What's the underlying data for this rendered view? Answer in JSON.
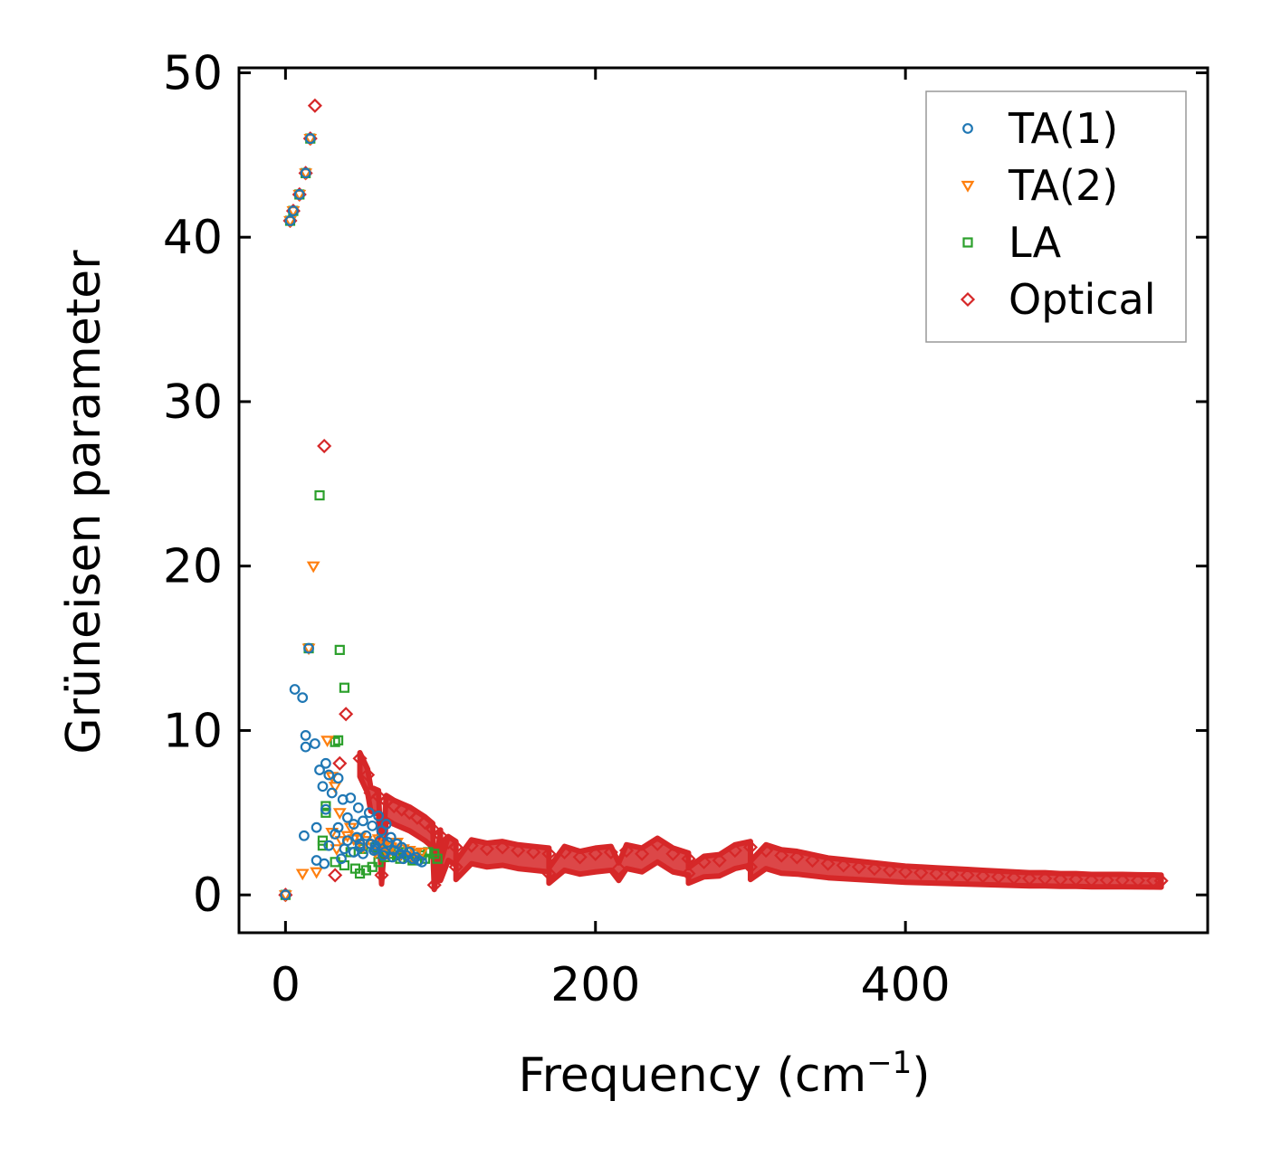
{
  "chart_data": {
    "type": "scatter",
    "title": "",
    "xlabel": "Frequency (cm",
    "xlabel_sup": "−1",
    "xlabel_end": ")",
    "ylabel": "Grüneisen parameter",
    "xlim": [
      -30,
      595
    ],
    "ylim": [
      -2.3,
      50.3
    ],
    "xticks": [
      0,
      200,
      400
    ],
    "yticks": [
      0,
      10,
      20,
      30,
      40,
      50
    ],
    "xtick_labels": [
      "0",
      "200",
      "400"
    ],
    "ytick_labels": [
      "0",
      "10",
      "20",
      "30",
      "40",
      "50"
    ],
    "grid": false,
    "legend_position": "top-right",
    "series": [
      {
        "name": "TA(1)",
        "marker": "circle",
        "color": "#1f77b4",
        "points": [
          [
            0,
            0
          ],
          [
            3,
            41
          ],
          [
            5,
            41.6
          ],
          [
            9,
            42.6
          ],
          [
            13,
            43.9
          ],
          [
            16,
            46
          ],
          [
            15,
            15
          ],
          [
            6,
            12.5
          ],
          [
            11,
            12
          ],
          [
            13,
            9.7
          ],
          [
            13,
            9
          ],
          [
            19,
            9.2
          ],
          [
            22,
            7.6
          ],
          [
            26,
            8
          ],
          [
            28,
            7.3
          ],
          [
            24,
            6.6
          ],
          [
            30,
            6.2
          ],
          [
            34,
            7.1
          ],
          [
            37,
            5.8
          ],
          [
            26,
            5.2
          ],
          [
            12,
            3.6
          ],
          [
            20,
            4.1
          ],
          [
            20,
            2.1
          ],
          [
            25,
            1.9
          ],
          [
            28,
            3.0
          ],
          [
            32,
            3.7
          ],
          [
            34,
            4.1
          ],
          [
            36,
            2.2
          ],
          [
            40,
            4.7
          ],
          [
            42,
            5.9
          ],
          [
            44,
            4.3
          ],
          [
            46,
            3.5
          ],
          [
            47,
            5.3
          ],
          [
            48,
            2.9
          ],
          [
            50,
            4.5
          ],
          [
            52,
            3.6
          ],
          [
            54,
            5.0
          ],
          [
            55,
            3.1
          ],
          [
            56,
            4.2
          ],
          [
            58,
            2.8
          ],
          [
            60,
            4.8
          ],
          [
            61,
            3.3
          ],
          [
            62,
            3.9
          ],
          [
            64,
            2.6
          ],
          [
            65,
            4.3
          ],
          [
            66,
            3.2
          ],
          [
            68,
            3.5
          ],
          [
            70,
            2.7
          ],
          [
            72,
            3.1
          ],
          [
            74,
            2.5
          ],
          [
            75,
            2.9
          ],
          [
            78,
            2.4
          ],
          [
            80,
            2.6
          ],
          [
            82,
            2.2
          ],
          [
            84,
            2.3
          ],
          [
            86,
            2.1
          ],
          [
            88,
            2.0
          ],
          [
            38,
            2.8
          ],
          [
            44,
            2.6
          ],
          [
            50,
            2.5
          ],
          [
            57,
            2.7
          ],
          [
            63,
            2.4
          ],
          [
            69,
            2.3
          ],
          [
            76,
            2.2
          ],
          [
            40,
            3.3
          ],
          [
            48,
            3.1
          ],
          [
            58,
            3.0
          ]
        ]
      },
      {
        "name": "TA(2)",
        "marker": "triangle-down",
        "color": "#ff7f0e",
        "points": [
          [
            0,
            0
          ],
          [
            3,
            41
          ],
          [
            5,
            41.6
          ],
          [
            9,
            42.6
          ],
          [
            13,
            43.9
          ],
          [
            16,
            46
          ],
          [
            15,
            15
          ],
          [
            18,
            20
          ],
          [
            27,
            9.4
          ],
          [
            30,
            7.2
          ],
          [
            32,
            6.6
          ],
          [
            35,
            5.0
          ],
          [
            30,
            3.8
          ],
          [
            33,
            2.8
          ],
          [
            11,
            1.3
          ],
          [
            20,
            1.4
          ],
          [
            36,
            3.3
          ],
          [
            40,
            3.6
          ],
          [
            44,
            3.4
          ],
          [
            48,
            3.5
          ],
          [
            52,
            3.3
          ],
          [
            56,
            3.1
          ],
          [
            60,
            3.4
          ],
          [
            64,
            3.0
          ],
          [
            68,
            2.9
          ],
          [
            72,
            3.2
          ],
          [
            76,
            2.8
          ],
          [
            80,
            2.7
          ],
          [
            84,
            2.5
          ],
          [
            88,
            2.6
          ],
          [
            42,
            4.1
          ],
          [
            50,
            2.9
          ],
          [
            58,
            2.6
          ],
          [
            66,
            2.5
          ],
          [
            74,
            2.4
          ],
          [
            82,
            2.3
          ]
        ]
      },
      {
        "name": "LA",
        "marker": "square",
        "color": "#2ca02c",
        "points": [
          [
            0,
            0
          ],
          [
            3,
            41
          ],
          [
            5,
            41.6
          ],
          [
            9,
            42.6
          ],
          [
            13,
            43.9
          ],
          [
            16,
            46
          ],
          [
            15,
            15
          ],
          [
            22,
            24.3
          ],
          [
            35,
            14.9
          ],
          [
            38,
            12.6
          ],
          [
            32,
            9.3
          ],
          [
            34,
            9.4
          ],
          [
            26,
            5.4
          ],
          [
            26,
            5.0
          ],
          [
            24,
            3.3
          ],
          [
            24,
            3.0
          ],
          [
            32,
            2.0
          ],
          [
            38,
            1.8
          ],
          [
            45,
            1.6
          ],
          [
            48,
            1.3
          ],
          [
            52,
            1.5
          ],
          [
            56,
            1.7
          ],
          [
            60,
            2.0
          ],
          [
            64,
            2.3
          ],
          [
            68,
            2.5
          ],
          [
            72,
            2.4
          ],
          [
            76,
            2.6
          ],
          [
            80,
            2.3
          ],
          [
            84,
            2.5
          ],
          [
            88,
            2.4
          ],
          [
            92,
            2.6
          ],
          [
            96,
            2.5
          ],
          [
            98,
            2.2
          ],
          [
            42,
            2.6
          ],
          [
            50,
            2.8
          ],
          [
            58,
            2.9
          ],
          [
            66,
            2.7
          ],
          [
            74,
            2.2
          ],
          [
            82,
            2.1
          ],
          [
            90,
            2.2
          ]
        ]
      },
      {
        "name": "Optical",
        "marker": "diamond",
        "color": "#d62728",
        "points": [
          [
            0,
            0
          ],
          [
            3,
            41
          ],
          [
            5,
            41.6
          ],
          [
            9,
            42.6
          ],
          [
            13,
            43.9
          ],
          [
            16,
            46
          ],
          [
            19,
            48
          ],
          [
            25,
            27.3
          ],
          [
            39,
            11
          ],
          [
            35,
            8
          ],
          [
            48,
            8.3
          ],
          [
            53,
            7.3
          ],
          [
            55,
            6.2
          ],
          [
            60,
            6.0
          ],
          [
            65,
            5.7
          ],
          [
            70,
            5.4
          ],
          [
            75,
            5.2
          ],
          [
            80,
            5.0
          ],
          [
            85,
            4.7
          ],
          [
            90,
            4.4
          ],
          [
            95,
            4.0
          ],
          [
            100,
            3.6
          ],
          [
            105,
            3.2
          ],
          [
            110,
            2.9
          ],
          [
            32,
            1.2
          ],
          [
            62,
            1.2
          ],
          [
            96,
            0.6
          ],
          [
            100,
            1.6
          ],
          [
            110,
            1.7
          ],
          [
            120,
            3.0
          ],
          [
            130,
            2.8
          ],
          [
            140,
            2.9
          ],
          [
            150,
            2.7
          ],
          [
            160,
            2.6
          ],
          [
            170,
            2.5
          ],
          [
            180,
            2.6
          ],
          [
            190,
            2.3
          ],
          [
            200,
            2.5
          ],
          [
            210,
            2.6
          ],
          [
            220,
            2.7
          ],
          [
            230,
            2.5
          ],
          [
            240,
            3.1
          ],
          [
            250,
            2.5
          ],
          [
            260,
            2.2
          ],
          [
            270,
            2.0
          ],
          [
            280,
            2.1
          ],
          [
            290,
            2.7
          ],
          [
            300,
            2.9
          ],
          [
            310,
            2.7
          ],
          [
            320,
            2.4
          ],
          [
            330,
            2.3
          ],
          [
            340,
            2.1
          ],
          [
            350,
            1.9
          ],
          [
            360,
            1.8
          ],
          [
            370,
            1.7
          ],
          [
            380,
            1.6
          ],
          [
            390,
            1.5
          ],
          [
            400,
            1.4
          ],
          [
            410,
            1.35
          ],
          [
            420,
            1.3
          ],
          [
            430,
            1.25
          ],
          [
            440,
            1.2
          ],
          [
            450,
            1.15
          ],
          [
            460,
            1.1
          ],
          [
            470,
            1.05
          ],
          [
            480,
            1.0
          ],
          [
            490,
            1.0
          ],
          [
            500,
            0.95
          ],
          [
            510,
            0.95
          ],
          [
            520,
            0.9
          ],
          [
            530,
            0.9
          ],
          [
            540,
            0.9
          ],
          [
            550,
            0.88
          ],
          [
            560,
            0.87
          ],
          [
            565,
            0.86
          ],
          [
            170,
            1.3
          ],
          [
            215,
            1.6
          ],
          [
            260,
            1.3
          ],
          [
            300,
            1.7
          ]
        ]
      }
    ]
  }
}
